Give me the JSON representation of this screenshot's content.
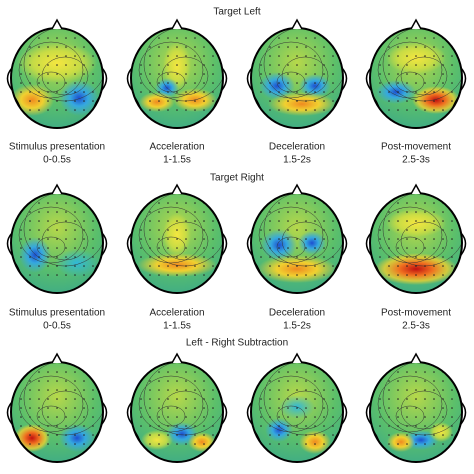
{
  "rows": [
    {
      "title": "Target Left",
      "panels": [
        {
          "label": "Stimulus presentation",
          "time": "0-0.5s"
        },
        {
          "label": "Acceleration",
          "time": "1-1.5s"
        },
        {
          "label": "Deceleration",
          "time": "1.5-2s"
        },
        {
          "label": "Post-movement",
          "time": "2.5-3s"
        }
      ]
    },
    {
      "title": "Target Right",
      "panels": [
        {
          "label": "Stimulus presentation",
          "time": "0-0.5s"
        },
        {
          "label": "Acceleration",
          "time": "1-1.5s"
        },
        {
          "label": "Deceleration",
          "time": "1.5-2s"
        },
        {
          "label": "Post-movement",
          "time": "2.5-3s"
        }
      ]
    },
    {
      "title": "Left - Right Subtraction"
    }
  ]
}
